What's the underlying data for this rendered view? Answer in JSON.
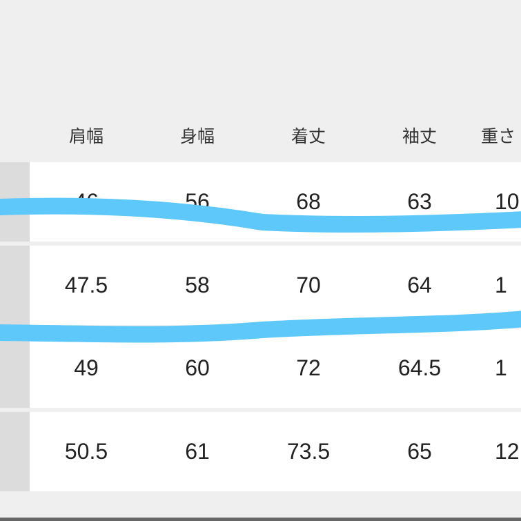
{
  "table": {
    "headers": [
      "肩幅",
      "身幅",
      "着丈",
      "袖丈",
      "重さ"
    ],
    "rows": [
      [
        "46",
        "56",
        "68",
        "63",
        "10"
      ],
      [
        "47.5",
        "58",
        "70",
        "64",
        "1"
      ],
      [
        "49",
        "60",
        "72",
        "64.5",
        "1"
      ],
      [
        "50.5",
        "61",
        "73.5",
        "65",
        "12"
      ]
    ]
  },
  "colors": {
    "highlight_stroke": "#5ec8fb",
    "background": "#efefef",
    "row_label_column": "#dcdcdc"
  }
}
